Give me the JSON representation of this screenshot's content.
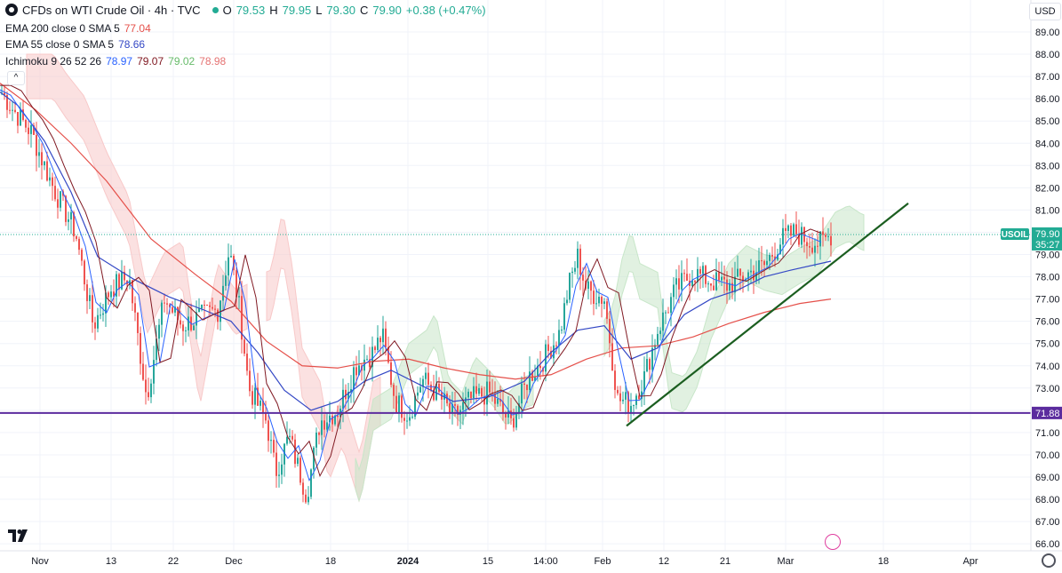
{
  "header": {
    "title": "CFDs on WTI Crude Oil · 4h · TVC",
    "ohlc": [
      {
        "k": "O",
        "v": "79.53"
      },
      {
        "k": "H",
        "v": "79.95"
      },
      {
        "k": "L",
        "v": "79.30"
      },
      {
        "k": "C",
        "v": "79.90"
      }
    ],
    "change": "+0.38 (+0.47%)",
    "ema200": {
      "label": "EMA 200 close 0 SMA 5",
      "value": "77.04"
    },
    "ema55": {
      "label": "EMA 55 close 0 SMA 5",
      "value": "78.66"
    },
    "ichimoku": {
      "label": "Ichimoku 9 26 52 26",
      "values": [
        "78.97",
        "79.07",
        "79.02",
        "78.98"
      ]
    },
    "currency": "USD"
  },
  "colors": {
    "up": "#26a69a",
    "down": "#ef5350",
    "ema200": "#e5504a",
    "ema55": "#3448c5",
    "conversion": "#2962ff",
    "base": "#801922",
    "cloud_up": "#c8e6c9",
    "cloud_down": "#f8c9c9",
    "support": "#5b2c9e",
    "trend": "#1b5e20",
    "price_tag": "#22ab94",
    "grid": "#f0f3fa"
  },
  "chart_data": {
    "type": "candlestick",
    "y_ticks": [
      "89.00",
      "88.00",
      "87.00",
      "86.00",
      "85.00",
      "84.00",
      "83.00",
      "82.00",
      "81.00",
      "80.00",
      "79.00",
      "78.00",
      "77.00",
      "76.00",
      "75.00",
      "74.00",
      "73.00",
      "72.00",
      "71.00",
      "70.00",
      "69.00",
      "68.00",
      "67.00",
      "66.00"
    ],
    "x_ticks": [
      "Nov",
      "13",
      "22",
      "Dec",
      "18",
      "2024",
      "15",
      "14:00",
      "Feb",
      "12",
      "21",
      "Mar",
      "18",
      "Apr"
    ],
    "ylim": [
      66,
      89.6
    ],
    "symbol_tag": "USOIL",
    "last_price": "79.90",
    "countdown": "35:27",
    "support_level": "71.88",
    "ema200": [
      [
        0,
        86.7
      ],
      [
        40,
        85.5
      ],
      [
        80,
        84
      ],
      [
        120,
        82.3
      ],
      [
        170,
        79.7
      ],
      [
        220,
        78.1
      ],
      [
        260,
        76.9
      ],
      [
        300,
        75.1
      ],
      [
        340,
        74
      ],
      [
        380,
        73.9
      ],
      [
        420,
        74.2
      ],
      [
        460,
        74.3
      ],
      [
        500,
        73.9
      ],
      [
        540,
        73.6
      ],
      [
        580,
        73.4
      ],
      [
        620,
        73.6
      ],
      [
        660,
        74.3
      ],
      [
        700,
        74.8
      ],
      [
        740,
        74.9
      ],
      [
        780,
        75.3
      ],
      [
        820,
        75.9
      ],
      [
        860,
        76.4
      ],
      [
        900,
        76.8
      ],
      [
        935,
        77.0
      ]
    ],
    "ema55": [
      [
        0,
        86.3
      ],
      [
        20,
        85.7
      ],
      [
        50,
        84.1
      ],
      [
        80,
        81.8
      ],
      [
        110,
        78.9
      ],
      [
        150,
        77.9
      ],
      [
        190,
        77.1
      ],
      [
        230,
        76.5
      ],
      [
        260,
        76
      ],
      [
        290,
        74.6
      ],
      [
        320,
        72.9
      ],
      [
        350,
        72
      ],
      [
        380,
        72.4
      ],
      [
        410,
        73.3
      ],
      [
        440,
        73.8
      ],
      [
        470,
        73.2
      ],
      [
        510,
        72.4
      ],
      [
        550,
        72.6
      ],
      [
        590,
        73.3
      ],
      [
        620,
        74.6
      ],
      [
        650,
        75.6
      ],
      [
        680,
        75.8
      ],
      [
        710,
        74.3
      ],
      [
        740,
        74.8
      ],
      [
        770,
        76.3
      ],
      [
        800,
        77
      ],
      [
        830,
        77.4
      ],
      [
        860,
        78
      ],
      [
        890,
        78.3
      ],
      [
        935,
        78.7
      ]
    ],
    "trendline": [
      [
        705,
        71.3
      ],
      [
        1022,
        81.3
      ]
    ],
    "bars": []
  }
}
